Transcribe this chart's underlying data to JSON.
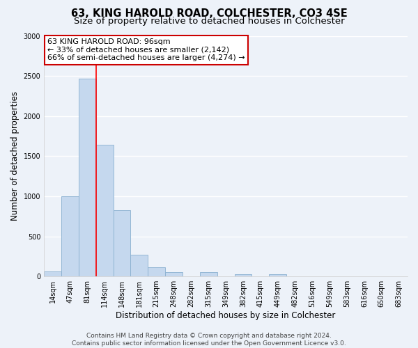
{
  "title": "63, KING HAROLD ROAD, COLCHESTER, CO3 4SE",
  "subtitle": "Size of property relative to detached houses in Colchester",
  "xlabel": "Distribution of detached houses by size in Colchester",
  "ylabel": "Number of detached properties",
  "bin_labels": [
    "14sqm",
    "47sqm",
    "81sqm",
    "114sqm",
    "148sqm",
    "181sqm",
    "215sqm",
    "248sqm",
    "282sqm",
    "315sqm",
    "349sqm",
    "382sqm",
    "415sqm",
    "449sqm",
    "482sqm",
    "516sqm",
    "549sqm",
    "583sqm",
    "616sqm",
    "650sqm",
    "683sqm"
  ],
  "bar_values": [
    60,
    1000,
    2470,
    1640,
    830,
    270,
    115,
    50,
    0,
    50,
    0,
    30,
    0,
    30,
    0,
    0,
    0,
    0,
    0,
    0,
    0
  ],
  "bar_color": "#c5d8ee",
  "bar_edgecolor": "#8ab0d0",
  "red_line_index": 2.5,
  "annotation_text1": "63 KING HAROLD ROAD: 96sqm",
  "annotation_text2": "← 33% of detached houses are smaller (2,142)",
  "annotation_text3": "66% of semi-detached houses are larger (4,274) →",
  "annotation_box_facecolor": "#ffffff",
  "annotation_box_edgecolor": "#cc0000",
  "ylim": [
    0,
    3000
  ],
  "yticks": [
    0,
    500,
    1000,
    1500,
    2000,
    2500,
    3000
  ],
  "footer1": "Contains HM Land Registry data © Crown copyright and database right 2024.",
  "footer2": "Contains public sector information licensed under the Open Government Licence v3.0.",
  "bg_color": "#edf2f9",
  "grid_color": "#ffffff",
  "title_fontsize": 10.5,
  "subtitle_fontsize": 9.5,
  "xlabel_fontsize": 8.5,
  "ylabel_fontsize": 8.5,
  "tick_fontsize": 7,
  "annotation_fontsize": 8,
  "footer_fontsize": 6.5
}
